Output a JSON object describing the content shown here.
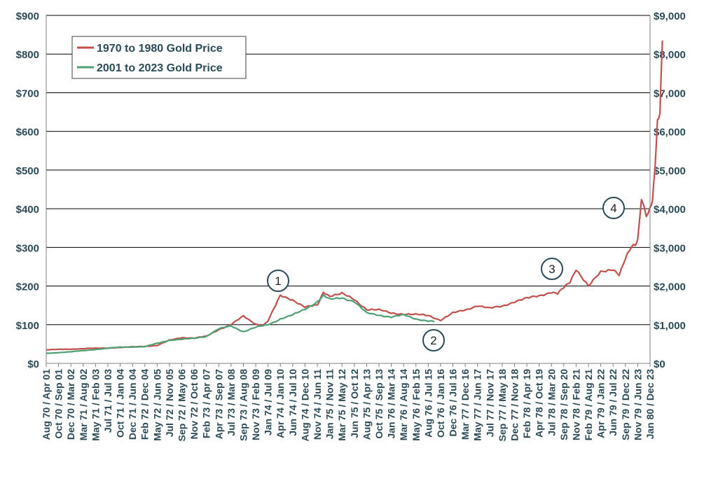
{
  "chart_data": {
    "type": "line",
    "title": "",
    "xlabel": "",
    "ylabel": "",
    "grid": true,
    "legend_position": "top-left",
    "left_axis": {
      "ylim": [
        0,
        900
      ],
      "ticks": [
        "$0",
        "$100",
        "$200",
        "$300",
        "$400",
        "$500",
        "$600",
        "$700",
        "$800",
        "$900"
      ]
    },
    "right_axis": {
      "ylim": [
        0,
        9000
      ],
      "ticks": [
        "$0",
        "$1,000",
        "$2,000",
        "$3,000",
        "$4,000",
        "$5,000",
        "$6,000",
        "$7,000",
        "$8,000",
        "$9,000"
      ]
    },
    "x_tick_labels": [
      "Aug 70 / Apr 01",
      "Oct 70 / Sep 01",
      "Dec 70 / Mar 02",
      "Mar 71 / Aug 02",
      "May 71 / Feb 03",
      "Jul 71 / Jul 03",
      "Oct 71 / Jan 04",
      "Dec 71 / Jun 04",
      "Feb 72 / Dec 04",
      "May 72 / Jun 05",
      "Jul 72 / Nov 05",
      "Sep 72 / May 06",
      "Nov 72 / Oct 06",
      "Feb 73 / Apr 07",
      "Apr 73 / Sep 07",
      "Jul 73 / Mar 08",
      "Sep 73 / Aug 08",
      "Nov 73 / Feb 09",
      "Jan 74 / Jul 09",
      "Apr 74 / Jan 10",
      "Jun 74 / Jul 10",
      "Aug 74 / Dec 10",
      "Nov 74 / Jun 11",
      "Jan 75 / Nov 11",
      "Mar 75 / May 12",
      "Jun 75 / Oct 12",
      "Aug 75 / Apr 13",
      "Oct 75 / Sep 13",
      "Jan 76 / Mar 14",
      "Mar 76 / Aug 14",
      "May 76 / Feb 15",
      "Aug 76 / Jul 15",
      "Oct 76 / Jan 16",
      "Dec 76 / Jul 16",
      "Mar 77 / Dec 16",
      "May 77 / Jun 17",
      "Jul 77 / Nov 17",
      "Sep 77 / May 18",
      "Dec 77 / Nov 18",
      "Feb 78 / Apr 19",
      "Apr 78 / Oct 19",
      "Jul 78 / Mar 20",
      "Sep 78 / Sep 20",
      "Nov 78 / Feb 21",
      "Feb 79 / Aug 21",
      "Apr 79 / Jan 22",
      "Jun 79 / Jul 22",
      "Sep 79 / Dec 22",
      "Nov 79 / Jun 23",
      "Jan 80 / Dec 23"
    ],
    "series": [
      {
        "name": "1970 to 1980 Gold Price",
        "axis": "left",
        "color": "#c0504d",
        "x_index": [
          0,
          3,
          6,
          9,
          10,
          11,
          12,
          13,
          14,
          15,
          16,
          17,
          17.6,
          18,
          19,
          20,
          21,
          22,
          22.5,
          23,
          24,
          25,
          26,
          27,
          28,
          29,
          30,
          31,
          32,
          33,
          34,
          35,
          36,
          37,
          38,
          39,
          40,
          41,
          41.5,
          42,
          42.5,
          43,
          44,
          45,
          46,
          46.5,
          47,
          47.5,
          47.8,
          48,
          48.3,
          48.7,
          49,
          49.2,
          49.4,
          49.6,
          49.8,
          50
        ],
        "values": [
          35,
          38,
          41,
          46,
          60,
          67,
          65,
          70,
          88,
          100,
          122,
          102,
          98,
          110,
          175,
          165,
          145,
          150,
          185,
          175,
          180,
          165,
          140,
          138,
          130,
          128,
          126,
          124,
          112,
          130,
          138,
          150,
          142,
          148,
          160,
          168,
          175,
          185,
          180,
          195,
          210,
          245,
          200,
          235,
          245,
          230,
          270,
          300,
          305,
          320,
          430,
          385,
          400,
          420,
          500,
          620,
          650,
          835
        ]
      },
      {
        "name": "2001 to 2023 Gold Price",
        "axis": "right",
        "color": "#4ea175",
        "x_index": [
          0,
          2,
          4,
          6,
          8,
          9,
          10,
          11,
          12,
          13,
          14,
          15,
          16,
          17,
          18,
          19,
          20,
          21,
          22,
          22.5,
          23,
          24,
          25,
          26,
          27,
          28,
          29,
          30,
          31,
          31.5
        ],
        "values": [
          260,
          300,
          360,
          420,
          430,
          520,
          600,
          620,
          650,
          700,
          890,
          970,
          820,
          930,
          1000,
          1150,
          1250,
          1400,
          1600,
          1750,
          1650,
          1700,
          1600,
          1300,
          1250,
          1200,
          1250,
          1150,
          1100,
          1080
        ]
      }
    ],
    "annotations": [
      "1",
      "2",
      "3",
      "4"
    ]
  }
}
